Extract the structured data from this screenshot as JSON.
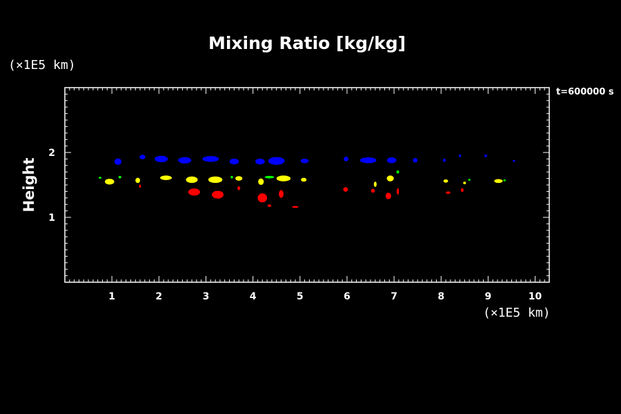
{
  "chart_data": {
    "type": "scatter",
    "title": "Mixing Ratio [kg/kg]",
    "ylabel": "Height",
    "xunit": "(×1E5 km)",
    "yunit": "(×1E5 km)",
    "time_label": "t=600000 s",
    "xlim": [
      0,
      10.3
    ],
    "ylim": [
      0,
      3.0
    ],
    "xticks": [
      "1",
      "2",
      "3",
      "4",
      "5",
      "6",
      "7",
      "8",
      "9",
      "10"
    ],
    "yticks": [
      "1",
      "2"
    ],
    "grid": false,
    "series": [
      {
        "color": "#0000ff",
        "blobs": [
          [
            1.13,
            1.86,
            0.15,
            0.1
          ],
          [
            1.65,
            1.93,
            0.12,
            0.07
          ],
          [
            2.05,
            1.9,
            0.28,
            0.1
          ],
          [
            2.55,
            1.88,
            0.28,
            0.1
          ],
          [
            3.1,
            1.9,
            0.35,
            0.09
          ],
          [
            3.6,
            1.86,
            0.2,
            0.09
          ],
          [
            4.15,
            1.86,
            0.2,
            0.09
          ],
          [
            4.5,
            1.87,
            0.35,
            0.12
          ],
          [
            5.1,
            1.87,
            0.17,
            0.07
          ],
          [
            5.98,
            1.9,
            0.1,
            0.07
          ],
          [
            6.45,
            1.88,
            0.35,
            0.09
          ],
          [
            6.95,
            1.88,
            0.2,
            0.09
          ],
          [
            7.45,
            1.88,
            0.1,
            0.07
          ],
          [
            8.07,
            1.88,
            0.06,
            0.05
          ],
          [
            8.4,
            1.95,
            0.05,
            0.04
          ],
          [
            8.95,
            1.95,
            0.06,
            0.04
          ],
          [
            9.55,
            1.87,
            0.05,
            0.03
          ]
        ]
      },
      {
        "color": "#00ff00",
        "blobs": [
          [
            0.75,
            1.61,
            0.06,
            0.03
          ],
          [
            1.17,
            1.62,
            0.06,
            0.04
          ],
          [
            3.55,
            1.62,
            0.05,
            0.04
          ],
          [
            4.35,
            1.62,
            0.2,
            0.04
          ],
          [
            7.08,
            1.7,
            0.06,
            0.05
          ],
          [
            8.6,
            1.58,
            0.05,
            0.03
          ],
          [
            9.35,
            1.57,
            0.05,
            0.03
          ]
        ]
      },
      {
        "color": "#ffff00",
        "blobs": [
          [
            0.95,
            1.55,
            0.2,
            0.09
          ],
          [
            1.55,
            1.57,
            0.1,
            0.08
          ],
          [
            2.15,
            1.61,
            0.25,
            0.07
          ],
          [
            2.7,
            1.58,
            0.25,
            0.1
          ],
          [
            3.2,
            1.58,
            0.3,
            0.1
          ],
          [
            3.7,
            1.6,
            0.15,
            0.07
          ],
          [
            4.17,
            1.55,
            0.12,
            0.1
          ],
          [
            4.65,
            1.6,
            0.3,
            0.09
          ],
          [
            5.08,
            1.58,
            0.12,
            0.06
          ],
          [
            6.6,
            1.51,
            0.06,
            0.08
          ],
          [
            6.92,
            1.6,
            0.15,
            0.09
          ],
          [
            8.1,
            1.56,
            0.1,
            0.05
          ],
          [
            8.5,
            1.53,
            0.06,
            0.04
          ],
          [
            9.22,
            1.56,
            0.18,
            0.06
          ]
        ]
      },
      {
        "color": "#ff0000",
        "blobs": [
          [
            1.6,
            1.48,
            0.04,
            0.05
          ],
          [
            2.75,
            1.39,
            0.25,
            0.11
          ],
          [
            3.25,
            1.35,
            0.25,
            0.12
          ],
          [
            3.7,
            1.45,
            0.06,
            0.06
          ],
          [
            4.2,
            1.3,
            0.2,
            0.14
          ],
          [
            4.6,
            1.36,
            0.1,
            0.12
          ],
          [
            4.35,
            1.18,
            0.08,
            0.04
          ],
          [
            4.9,
            1.16,
            0.14,
            0.03
          ],
          [
            5.97,
            1.43,
            0.1,
            0.07
          ],
          [
            6.55,
            1.41,
            0.08,
            0.06
          ],
          [
            6.88,
            1.33,
            0.12,
            0.1
          ],
          [
            7.08,
            1.4,
            0.05,
            0.1
          ],
          [
            8.15,
            1.38,
            0.1,
            0.04
          ],
          [
            8.45,
            1.42,
            0.06,
            0.06
          ]
        ]
      }
    ]
  }
}
